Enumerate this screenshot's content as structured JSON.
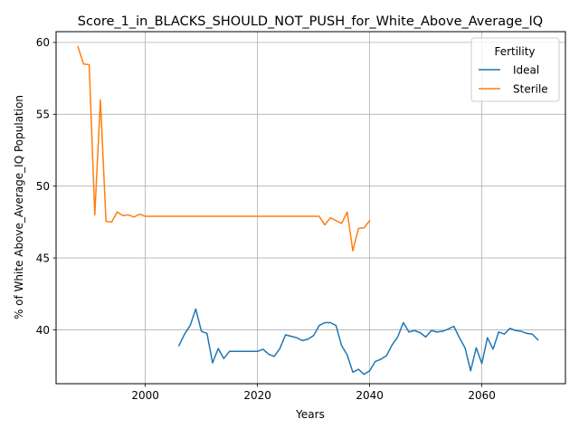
{
  "chart_data": {
    "type": "line",
    "title": "Score_1_in_BLACKS_SHOULD_NOT_PUSH_for_White_Above_Average_IQ",
    "xlabel": "Years",
    "ylabel": "% of White Above_Average_IQ Population",
    "xlim": [
      1984.1,
      2074.9
    ],
    "ylim": [
      36.25,
      60.75
    ],
    "xticks": [
      2000,
      2020,
      2040,
      2060
    ],
    "yticks": [
      40,
      45,
      50,
      55,
      60
    ],
    "grid": true,
    "legend": {
      "title": "Fertility",
      "placement": "upper right"
    },
    "series": [
      {
        "name": "Ideal",
        "color": "#1f77b4",
        "x": [
          2006,
          2007,
          2008,
          2009,
          2010,
          2011,
          2012,
          2013,
          2014,
          2015,
          2016,
          2017,
          2018,
          2019,
          2020,
          2021,
          2022,
          2023,
          2024,
          2025,
          2026,
          2027,
          2028,
          2029,
          2030,
          2031,
          2032,
          2033,
          2034,
          2035,
          2036,
          2037,
          2038,
          2039,
          2040,
          2041,
          2042,
          2043,
          2044,
          2045,
          2046,
          2047,
          2048,
          2049,
          2050,
          2051,
          2052,
          2053,
          2054,
          2055,
          2056,
          2057,
          2058,
          2059,
          2060,
          2061,
          2062,
          2063,
          2064,
          2065,
          2066,
          2067,
          2068,
          2069,
          2070
        ],
        "values": [
          38.9,
          39.7,
          40.3,
          41.45,
          39.9,
          39.75,
          37.7,
          38.7,
          38.0,
          38.5,
          38.5,
          38.5,
          38.5,
          38.5,
          38.5,
          38.65,
          38.3,
          38.15,
          38.7,
          39.65,
          39.55,
          39.45,
          39.25,
          39.35,
          39.6,
          40.3,
          40.5,
          40.5,
          40.3,
          38.9,
          38.25,
          37.05,
          37.25,
          36.9,
          37.15,
          37.8,
          37.95,
          38.2,
          38.95,
          39.5,
          40.5,
          39.85,
          39.95,
          39.8,
          39.5,
          39.95,
          39.85,
          39.9,
          40.05,
          40.25,
          39.45,
          38.75,
          37.15,
          38.75,
          37.65,
          39.45,
          38.65,
          39.85,
          39.7,
          40.1,
          39.95,
          39.9,
          39.75,
          39.7,
          39.3
        ]
      },
      {
        "name": "Sterile",
        "color": "#ff7f0e",
        "x": [
          1988,
          1989,
          1990,
          1991,
          1992,
          1993,
          1994,
          1995,
          1996,
          1997,
          1998,
          1999,
          2000,
          2001,
          2002,
          2003,
          2004,
          2005,
          2006,
          2007,
          2008,
          2009,
          2010,
          2011,
          2012,
          2013,
          2014,
          2015,
          2016,
          2017,
          2018,
          2019,
          2020,
          2021,
          2022,
          2023,
          2024,
          2025,
          2026,
          2027,
          2028,
          2029,
          2030,
          2031,
          2032,
          2033,
          2034,
          2035,
          2036,
          2037,
          2038,
          2039,
          2040
        ],
        "values": [
          59.7,
          58.5,
          58.45,
          48.0,
          56.0,
          47.55,
          47.5,
          48.2,
          47.95,
          48.0,
          47.85,
          48.05,
          47.9,
          47.9,
          47.9,
          47.9,
          47.9,
          47.9,
          47.9,
          47.9,
          47.9,
          47.9,
          47.9,
          47.9,
          47.9,
          47.9,
          47.9,
          47.9,
          47.9,
          47.9,
          47.9,
          47.9,
          47.9,
          47.9,
          47.9,
          47.9,
          47.9,
          47.9,
          47.9,
          47.9,
          47.9,
          47.9,
          47.9,
          47.9,
          47.3,
          47.8,
          47.6,
          47.4,
          48.2,
          45.5,
          47.05,
          47.1,
          47.6
        ]
      }
    ]
  }
}
